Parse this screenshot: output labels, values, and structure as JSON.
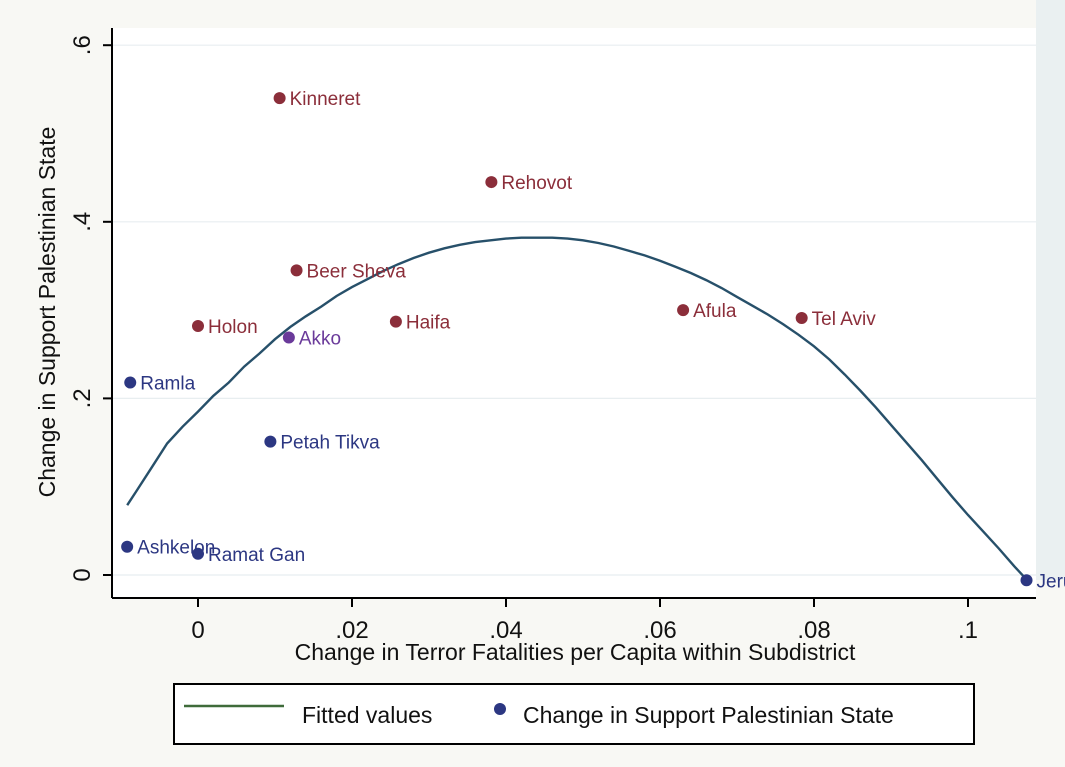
{
  "chart_data": {
    "type": "scatter",
    "xlabel": "Change in Terror Fatalities per Capita within Subdistrict",
    "ylabel": "Change in Support Palestinian State",
    "xlim": [
      -0.011,
      0.111
    ],
    "ylim": [
      -0.025,
      0.62
    ],
    "x_ticks": [
      {
        "value": 0,
        "label": "0"
      },
      {
        "value": 0.02,
        "label": ".02"
      },
      {
        "value": 0.04,
        "label": ".04"
      },
      {
        "value": 0.06,
        "label": ".06"
      },
      {
        "value": 0.08,
        "label": ".08"
      },
      {
        "value": 0.1,
        "label": ".1"
      }
    ],
    "y_ticks": [
      {
        "value": 0,
        "label": "0"
      },
      {
        "value": 0.2,
        "label": ".2"
      },
      {
        "value": 0.4,
        "label": ".4"
      },
      {
        "value": 0.6,
        "label": ".6"
      }
    ],
    "grid": "horizontal",
    "series": [
      {
        "name": "Change in Support Palestinian State",
        "kind": "scatter",
        "points": [
          {
            "x": 0.0106,
            "y": 0.54,
            "label": "Kinneret",
            "color": "#8b2e3a"
          },
          {
            "x": 0.0381,
            "y": 0.445,
            "label": "Rehovot",
            "color": "#8b2e3a"
          },
          {
            "x": 0.0128,
            "y": 0.345,
            "label": "Beer Sheva",
            "color": "#8b2e3a"
          },
          {
            "x": 0.0,
            "y": 0.282,
            "label": "Holon",
            "color": "#8b2e3a"
          },
          {
            "x": 0.0257,
            "y": 0.287,
            "label": "Haifa",
            "color": "#8b2e3a"
          },
          {
            "x": 0.063,
            "y": 0.3,
            "label": "Afula",
            "color": "#8b2e3a"
          },
          {
            "x": 0.0784,
            "y": 0.291,
            "label": "Tel Aviv",
            "color": "#8b2e3a"
          },
          {
            "x": 0.0118,
            "y": 0.269,
            "label": "Akko",
            "color": "#6a3a9a"
          },
          {
            "x": -0.0088,
            "y": 0.218,
            "label": "Ramla",
            "color": "#2c3782"
          },
          {
            "x": 0.0094,
            "y": 0.151,
            "label": "Petah Tikva",
            "color": "#2c3782"
          },
          {
            "x": -0.0092,
            "y": 0.032,
            "label": "Ashkelon",
            "color": "#2c3782"
          },
          {
            "x": 0.0,
            "y": 0.024,
            "label": "Ramat Gan",
            "color": "#2c3782"
          },
          {
            "x": 0.1076,
            "y": -0.006,
            "label": "Jeru",
            "color": "#2c3782"
          }
        ]
      },
      {
        "name": "Fitted values",
        "kind": "line",
        "color": "#27506a",
        "points": [
          {
            "x": -0.0092,
            "y": 0.079
          },
          {
            "x": -0.008,
            "y": 0.095
          },
          {
            "x": -0.006,
            "y": 0.122
          },
          {
            "x": -0.004,
            "y": 0.149
          },
          {
            "x": -0.002,
            "y": 0.168
          },
          {
            "x": 0.0,
            "y": 0.185
          },
          {
            "x": 0.002,
            "y": 0.203
          },
          {
            "x": 0.004,
            "y": 0.218
          },
          {
            "x": 0.006,
            "y": 0.236
          },
          {
            "x": 0.008,
            "y": 0.251
          },
          {
            "x": 0.01,
            "y": 0.267
          },
          {
            "x": 0.012,
            "y": 0.281
          },
          {
            "x": 0.014,
            "y": 0.293
          },
          {
            "x": 0.016,
            "y": 0.304
          },
          {
            "x": 0.018,
            "y": 0.316
          },
          {
            "x": 0.02,
            "y": 0.326
          },
          {
            "x": 0.022,
            "y": 0.335
          },
          {
            "x": 0.024,
            "y": 0.344
          },
          {
            "x": 0.026,
            "y": 0.352
          },
          {
            "x": 0.028,
            "y": 0.359
          },
          {
            "x": 0.03,
            "y": 0.365
          },
          {
            "x": 0.032,
            "y": 0.37
          },
          {
            "x": 0.034,
            "y": 0.374
          },
          {
            "x": 0.036,
            "y": 0.377
          },
          {
            "x": 0.038,
            "y": 0.379
          },
          {
            "x": 0.04,
            "y": 0.381
          },
          {
            "x": 0.042,
            "y": 0.382
          },
          {
            "x": 0.044,
            "y": 0.382
          },
          {
            "x": 0.046,
            "y": 0.382
          },
          {
            "x": 0.048,
            "y": 0.381
          },
          {
            "x": 0.05,
            "y": 0.379
          },
          {
            "x": 0.052,
            "y": 0.376
          },
          {
            "x": 0.054,
            "y": 0.372
          },
          {
            "x": 0.056,
            "y": 0.367
          },
          {
            "x": 0.058,
            "y": 0.362
          },
          {
            "x": 0.06,
            "y": 0.356
          },
          {
            "x": 0.062,
            "y": 0.349
          },
          {
            "x": 0.064,
            "y": 0.342
          },
          {
            "x": 0.066,
            "y": 0.334
          },
          {
            "x": 0.068,
            "y": 0.325
          },
          {
            "x": 0.07,
            "y": 0.315
          },
          {
            "x": 0.072,
            "y": 0.305
          },
          {
            "x": 0.074,
            "y": 0.295
          },
          {
            "x": 0.076,
            "y": 0.284
          },
          {
            "x": 0.078,
            "y": 0.272
          },
          {
            "x": 0.08,
            "y": 0.259
          },
          {
            "x": 0.082,
            "y": 0.244
          },
          {
            "x": 0.084,
            "y": 0.227
          },
          {
            "x": 0.086,
            "y": 0.209
          },
          {
            "x": 0.088,
            "y": 0.19
          },
          {
            "x": 0.09,
            "y": 0.17
          },
          {
            "x": 0.092,
            "y": 0.15
          },
          {
            "x": 0.094,
            "y": 0.13
          },
          {
            "x": 0.096,
            "y": 0.109
          },
          {
            "x": 0.098,
            "y": 0.088
          },
          {
            "x": 0.1,
            "y": 0.068
          },
          {
            "x": 0.102,
            "y": 0.049
          },
          {
            "x": 0.104,
            "y": 0.03
          },
          {
            "x": 0.106,
            "y": 0.01
          },
          {
            "x": 0.1076,
            "y": -0.005
          }
        ]
      }
    ],
    "legend": {
      "placement": "bottom",
      "entries": [
        {
          "label": "Fitted values",
          "symbol": "line",
          "color": "#3f6b3a"
        },
        {
          "label": "Change in Support Palestinian State",
          "symbol": "dot",
          "color": "#2c3782"
        }
      ]
    }
  }
}
